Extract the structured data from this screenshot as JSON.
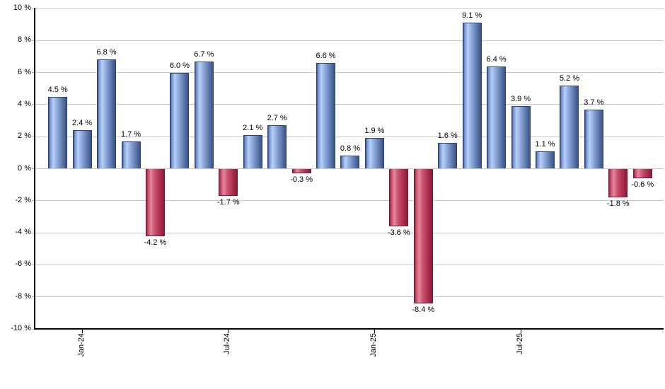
{
  "chart_data": {
    "type": "bar",
    "title": "",
    "xlabel": "",
    "ylabel": "",
    "unit": "%",
    "ylim": [
      -10,
      10
    ],
    "ytick_step": 2,
    "grid": true,
    "legend": null,
    "y_tick_labels": [
      "10 %",
      "8 %",
      "6 %",
      "4 %",
      "2 %",
      "0 %",
      "-2 %",
      "-4 %",
      "-6 %",
      "-8 %",
      "-10 %"
    ],
    "x_tick_labels": [
      {
        "label": "Jan-24",
        "bar_index": 1
      },
      {
        "label": "Jul-24",
        "bar_index": 7
      },
      {
        "label": "Jan-25",
        "bar_index": 13
      },
      {
        "label": "Jul-25",
        "bar_index": 19
      }
    ],
    "values": [
      4.5,
      2.4,
      6.8,
      1.7,
      -4.2,
      6.0,
      6.7,
      -1.7,
      2.1,
      2.7,
      -0.3,
      6.6,
      0.8,
      1.9,
      -3.6,
      -8.4,
      1.6,
      9.1,
      6.4,
      3.9,
      1.1,
      5.2,
      3.7,
      -1.8,
      -0.6
    ],
    "bar_labels": [
      "4.5 %",
      "2.4 %",
      "6.8 %",
      "1.7 %",
      "-4.2 %",
      "6.0 %",
      "6.7 %",
      "-1.7 %",
      "2.1 %",
      "2.7 %",
      "-0.3 %",
      "6.6 %",
      "0.8 %",
      "1.9 %",
      "-3.6 %",
      "-8.4 %",
      "1.6 %",
      "9.1 %",
      "6.4 %",
      "3.9 %",
      "1.1 %",
      "5.2 %",
      "3.7 %",
      "-1.8 %",
      "-0.6 %"
    ],
    "colors": {
      "positive_light": "#b9cff4",
      "positive_dark": "#3c5184",
      "positive_border": "#2c4273",
      "negative_light": "#e3879c",
      "negative_dark": "#8a1c39",
      "negative_border": "#7c1834",
      "gridline": "#c9c9c9",
      "axis": "#000000",
      "label_text": "#000000"
    }
  }
}
